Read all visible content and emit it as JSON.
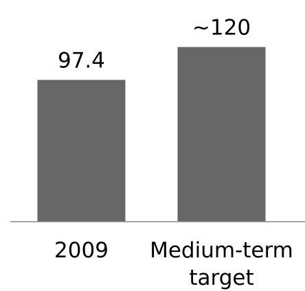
{
  "chart_data": {
    "type": "bar",
    "categories": [
      "2009",
      "Medium-term target"
    ],
    "category_lines": [
      [
        "2009"
      ],
      [
        "Medium-term",
        "target"
      ]
    ],
    "values": [
      97.4,
      120
    ],
    "data_labels": [
      "97.4",
      "~120"
    ],
    "title": "",
    "xlabel": "",
    "ylabel": "",
    "ylim": [
      0,
      124
    ],
    "grid": false,
    "legend": "none",
    "bar_color": "#666666",
    "axis_color": "#888888"
  }
}
